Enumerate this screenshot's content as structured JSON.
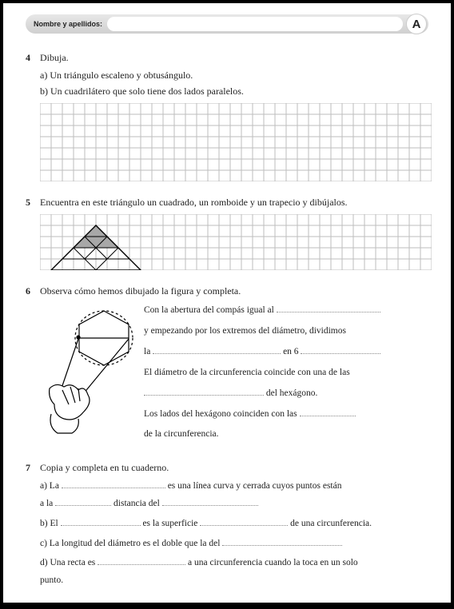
{
  "header": {
    "name_label": "Nombre y apellidos:",
    "badge": "A"
  },
  "ex4": {
    "num": "4",
    "title": "Dibuja.",
    "a": "a) Un triángulo escaleno y obtusángulo.",
    "b": "b) Un cuadrilátero que solo tiene dos lados paralelos.",
    "grid": {
      "cols": 35,
      "rows": 7,
      "cell": 14,
      "stroke": "#bdbdbd"
    }
  },
  "ex5": {
    "num": "5",
    "title": "Encuentra en este triángulo un cuadrado, un romboide y un trapecio y dibújalos.",
    "grid": {
      "cols": 35,
      "rows": 5,
      "cell": 14,
      "stroke": "#bdbdbd"
    },
    "triangle": {
      "outline": "#000",
      "fill_gray": "#a8a8a8",
      "base_col_start": 1,
      "base_col_end": 9,
      "apex_col": 5,
      "base_row": 5,
      "apex_row": 1
    }
  },
  "ex6": {
    "num": "6",
    "title": "Observa cómo hemos dibujado la figura y completa.",
    "l1a": "Con la abertura del compás igual al ",
    "l2a": "y empezando por los extremos del diámetro, dividimos",
    "l3a": "la ",
    "l3b": " en 6 ",
    "l4a": "El diámetro de la circunferencia coincide con una de las",
    "l5a": "",
    "l5b": " del hexágono.",
    "l6a": "Los lados del hexágono coinciden con las ",
    "l7a": "de la circunferencia."
  },
  "ex7": {
    "num": "7",
    "title": "Copia y completa en tu cuaderno.",
    "a1": "a) La ",
    "a2": " es una línea curva y cerrada cuyos puntos están",
    "a3": "a la ",
    "a4": " distancia del ",
    "b1": "b) El ",
    "b2": " es la superficie ",
    "b3": " de una circunferencia.",
    "c1": "c) La longitud del diámetro es el doble que la del ",
    "d1": "d) Una recta es ",
    "d2": " a una circunferencia cuando la toca en un solo",
    "d3": "punto."
  },
  "colors": {
    "page_bg": "#ffffff",
    "dotted": "#888888"
  }
}
